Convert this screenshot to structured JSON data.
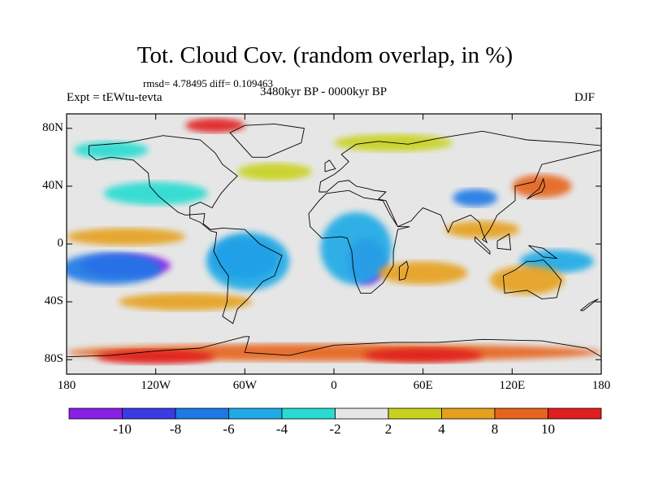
{
  "title": "Tot. Cloud Cov. (random overlap, in %)",
  "stats_text": "rmsd= 4.78495 diff= 0.109463",
  "experiment_text": "Expt = tEWtu-tevta",
  "period_text": "3480kyr BP - 0000kyr BP",
  "season_text": "DJF",
  "lat_ticks": [
    "80N",
    "40N",
    "0",
    "40S",
    "80S"
  ],
  "lat_values": [
    80,
    40,
    0,
    -40,
    -80
  ],
  "lon_ticks": [
    "180",
    "120W",
    "60W",
    "0",
    "60E",
    "120E",
    "180"
  ],
  "lon_values": [
    -180,
    -120,
    -60,
    0,
    60,
    120,
    180
  ],
  "map_extent": {
    "lon": [
      -180,
      180
    ],
    "lat": [
      -90,
      90
    ]
  },
  "colorbar": {
    "labels": [
      "-10",
      "-8",
      "-6",
      "-4",
      "-2",
      "2",
      "4",
      "8",
      "10"
    ],
    "colors": [
      "#8a1fe6",
      "#3a3ae6",
      "#1e78e6",
      "#1eaae6",
      "#28dcd2",
      "#e6e6e6",
      "#c8d21e",
      "#e6a01e",
      "#e6641e",
      "#e01e1e"
    ]
  },
  "field_blobs": [
    {
      "lon": -140,
      "lat": -15,
      "rx": 30,
      "ry": 8,
      "level": 0
    },
    {
      "lon": -150,
      "lat": -17,
      "rx": 34,
      "ry": 11,
      "level": 2
    },
    {
      "lon": -60,
      "lat": -10,
      "rx": 22,
      "ry": 14,
      "level": 1
    },
    {
      "lon": -58,
      "lat": -12,
      "rx": 28,
      "ry": 20,
      "level": 3
    },
    {
      "lon": 22,
      "lat": -12,
      "rx": 13,
      "ry": 16,
      "level": 0
    },
    {
      "lon": 15,
      "lat": -3,
      "rx": 24,
      "ry": 25,
      "level": 3
    },
    {
      "lon": 150,
      "lat": -12,
      "rx": 25,
      "ry": 8,
      "level": 3
    },
    {
      "lon": 95,
      "lat": 32,
      "rx": 15,
      "ry": 6,
      "level": 2
    },
    {
      "lon": -120,
      "lat": 35,
      "rx": 35,
      "ry": 8,
      "level": 4
    },
    {
      "lon": -140,
      "lat": 5,
      "rx": 40,
      "ry": 6,
      "level": 7
    },
    {
      "lon": -100,
      "lat": -40,
      "rx": 45,
      "ry": 6,
      "level": 7
    },
    {
      "lon": 60,
      "lat": -20,
      "rx": 30,
      "ry": 8,
      "level": 7
    },
    {
      "lon": 130,
      "lat": -25,
      "rx": 25,
      "ry": 10,
      "level": 7
    },
    {
      "lon": 0,
      "lat": -75,
      "rx": 180,
      "ry": 6,
      "level": 8
    },
    {
      "lon": -120,
      "lat": -78,
      "rx": 40,
      "ry": 5,
      "level": 9
    },
    {
      "lon": 60,
      "lat": -77,
      "rx": 40,
      "ry": 5,
      "level": 9
    },
    {
      "lon": -80,
      "lat": 82,
      "rx": 20,
      "ry": 5,
      "level": 9
    },
    {
      "lon": 140,
      "lat": 40,
      "rx": 20,
      "ry": 8,
      "level": 8
    },
    {
      "lon": 100,
      "lat": 10,
      "rx": 25,
      "ry": 6,
      "level": 7
    },
    {
      "lon": -40,
      "lat": 50,
      "rx": 25,
      "ry": 6,
      "level": 6
    },
    {
      "lon": 40,
      "lat": 70,
      "rx": 40,
      "ry": 6,
      "level": 6
    },
    {
      "lon": -150,
      "lat": 65,
      "rx": 25,
      "ry": 6,
      "level": 4
    }
  ],
  "coastlines": [
    [
      [
        -165,
        68
      ],
      [
        -140,
        70
      ],
      [
        -115,
        75
      ],
      [
        -90,
        72
      ],
      [
        -80,
        63
      ],
      [
        -75,
        55
      ],
      [
        -65,
        47
      ],
      [
        -70,
        42
      ],
      [
        -76,
        35
      ],
      [
        -81,
        27
      ],
      [
        -82,
        25
      ],
      [
        -90,
        29
      ],
      [
        -97,
        26
      ],
      [
        -97,
        18
      ],
      [
        -90,
        15
      ],
      [
        -83,
        9
      ],
      [
        -79,
        8
      ],
      [
        -80,
        0
      ],
      [
        -81,
        -5
      ],
      [
        -76,
        -15
      ],
      [
        -71,
        -22
      ],
      [
        -72,
        -40
      ],
      [
        -75,
        -50
      ],
      [
        -68,
        -55
      ],
      [
        -65,
        -45
      ],
      [
        -58,
        -38
      ],
      [
        -48,
        -26
      ],
      [
        -40,
        -22
      ],
      [
        -35,
        -8
      ],
      [
        -50,
        0
      ],
      [
        -60,
        10
      ],
      [
        -75,
        11
      ],
      [
        -83,
        10
      ],
      [
        -88,
        14
      ],
      [
        -87,
        21
      ],
      [
        -100,
        20
      ],
      [
        -105,
        22
      ],
      [
        -118,
        33
      ],
      [
        -124,
        40
      ],
      [
        -125,
        49
      ],
      [
        -135,
        58
      ],
      [
        -150,
        60
      ],
      [
        -160,
        58
      ],
      [
        -165,
        62
      ],
      [
        -165,
        68
      ]
    ],
    [
      [
        -55,
        60
      ],
      [
        -45,
        60
      ],
      [
        -22,
        70
      ],
      [
        -20,
        80
      ],
      [
        -40,
        83
      ],
      [
        -60,
        82
      ],
      [
        -70,
        77
      ],
      [
        -55,
        60
      ]
    ],
    [
      [
        -10,
        36
      ],
      [
        -9,
        43
      ],
      [
        0,
        48
      ],
      [
        5,
        52
      ],
      [
        10,
        57
      ],
      [
        5,
        62
      ],
      [
        15,
        69
      ],
      [
        30,
        71
      ],
      [
        50,
        69
      ],
      [
        70,
        73
      ],
      [
        100,
        78
      ],
      [
        130,
        72
      ],
      [
        160,
        70
      ],
      [
        180,
        68
      ],
      [
        180,
        65
      ],
      [
        160,
        60
      ],
      [
        140,
        55
      ],
      [
        135,
        43
      ],
      [
        122,
        40
      ],
      [
        122,
        30
      ],
      [
        110,
        20
      ],
      [
        105,
        10
      ],
      [
        100,
        3
      ],
      [
        103,
        1
      ],
      [
        100,
        8
      ],
      [
        98,
        15
      ],
      [
        92,
        20
      ],
      [
        80,
        15
      ],
      [
        77,
        8
      ],
      [
        72,
        20
      ],
      [
        60,
        25
      ],
      [
        57,
        22
      ],
      [
        52,
        16
      ],
      [
        43,
        12
      ],
      [
        35,
        30
      ],
      [
        30,
        31
      ],
      [
        35,
        36
      ],
      [
        27,
        37
      ],
      [
        24,
        38
      ],
      [
        15,
        40
      ],
      [
        10,
        44
      ],
      [
        3,
        43
      ],
      [
        -5,
        36
      ],
      [
        -10,
        36
      ]
    ],
    [
      [
        -17,
        21
      ],
      [
        -16,
        12
      ],
      [
        -8,
        4
      ],
      [
        5,
        5
      ],
      [
        9,
        4
      ],
      [
        12,
        -5
      ],
      [
        13,
        -17
      ],
      [
        15,
        -27
      ],
      [
        18,
        -34
      ],
      [
        25,
        -34
      ],
      [
        33,
        -27
      ],
      [
        40,
        -15
      ],
      [
        40,
        -5
      ],
      [
        43,
        10
      ],
      [
        51,
        12
      ],
      [
        43,
        12
      ],
      [
        38,
        20
      ],
      [
        33,
        30
      ],
      [
        20,
        32
      ],
      [
        10,
        37
      ],
      [
        -5,
        35
      ],
      [
        -10,
        30
      ],
      [
        -17,
        21
      ]
    ],
    [
      [
        114,
        -22
      ],
      [
        115,
        -34
      ],
      [
        130,
        -32
      ],
      [
        140,
        -38
      ],
      [
        150,
        -37
      ],
      [
        153,
        -25
      ],
      [
        145,
        -15
      ],
      [
        141,
        -11
      ],
      [
        135,
        -12
      ],
      [
        130,
        -12
      ],
      [
        122,
        -18
      ],
      [
        114,
        -22
      ]
    ],
    [
      [
        -180,
        -78
      ],
      [
        -150,
        -77
      ],
      [
        -120,
        -74
      ],
      [
        -90,
        -72
      ],
      [
        -60,
        -64
      ],
      [
        -57,
        -64
      ],
      [
        -60,
        -75
      ],
      [
        -30,
        -77
      ],
      [
        0,
        -70
      ],
      [
        40,
        -68
      ],
      [
        70,
        -68
      ],
      [
        100,
        -66
      ],
      [
        140,
        -67
      ],
      [
        170,
        -72
      ],
      [
        180,
        -78
      ]
    ],
    [
      [
        -6,
        50
      ],
      [
        -3,
        51
      ],
      [
        1,
        52
      ],
      [
        -1,
        55
      ],
      [
        -3,
        58
      ],
      [
        -6,
        56
      ],
      [
        -6,
        50
      ]
    ],
    [
      [
        130,
        31
      ],
      [
        135,
        34
      ],
      [
        140,
        36
      ],
      [
        142,
        40
      ],
      [
        141,
        45
      ],
      [
        138,
        38
      ],
      [
        133,
        34
      ],
      [
        130,
        31
      ]
    ],
    [
      [
        44,
        -25
      ],
      [
        48,
        -24
      ],
      [
        50,
        -16
      ],
      [
        49,
        -12
      ],
      [
        44,
        -16
      ],
      [
        44,
        -25
      ]
    ],
    [
      [
        95,
        5
      ],
      [
        105,
        -5
      ],
      [
        105,
        -7
      ],
      [
        95,
        2
      ],
      [
        95,
        5
      ]
    ],
    [
      [
        110,
        2
      ],
      [
        118,
        7
      ],
      [
        119,
        -4
      ],
      [
        110,
        -3
      ],
      [
        110,
        2
      ]
    ],
    [
      [
        131,
        -1
      ],
      [
        141,
        -3
      ],
      [
        150,
        -10
      ],
      [
        141,
        -9
      ],
      [
        131,
        -1
      ]
    ],
    [
      [
        166,
        -46
      ],
      [
        172,
        -41
      ],
      [
        178,
        -38
      ],
      [
        174,
        -41
      ],
      [
        168,
        -46
      ],
      [
        166,
        -46
      ]
    ]
  ]
}
